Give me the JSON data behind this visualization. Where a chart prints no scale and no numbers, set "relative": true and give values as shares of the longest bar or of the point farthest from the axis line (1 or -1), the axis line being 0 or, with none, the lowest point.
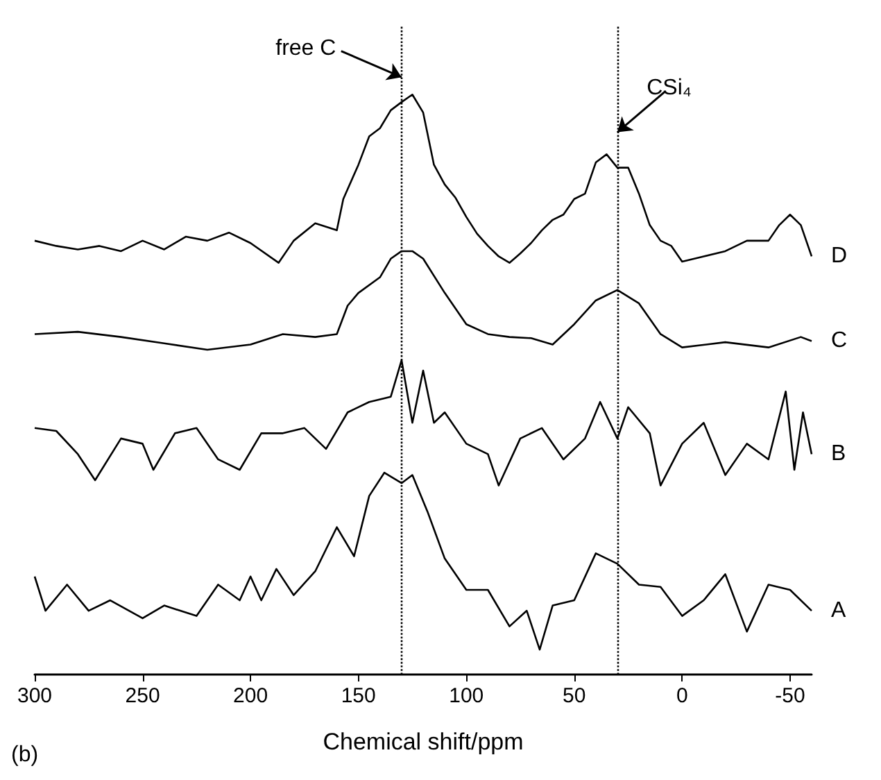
{
  "chart_data": {
    "type": "line",
    "relative": true,
    "xlabel": "Chemical shift/ppm",
    "xlim": [
      300,
      -60
    ],
    "xticks": [
      300,
      250,
      200,
      150,
      100,
      50,
      0,
      -50
    ],
    "series": [
      {
        "name": "D",
        "color": "#000000",
        "x": [
          300,
          290,
          280,
          270,
          260,
          250,
          240,
          230,
          220,
          210,
          200,
          187,
          180,
          170,
          160,
          157,
          150,
          145,
          140,
          135,
          130,
          125,
          120,
          115,
          110,
          105,
          100,
          95,
          90,
          85,
          80,
          75,
          70,
          65,
          60,
          55,
          50,
          45,
          40,
          35,
          30,
          25,
          20,
          15,
          10,
          5,
          0,
          -10,
          -20,
          -30,
          -40,
          -45,
          -50,
          -55,
          -60
        ],
        "values": [
          0.748,
          0.739,
          0.733,
          0.739,
          0.73,
          0.748,
          0.733,
          0.755,
          0.748,
          0.762,
          0.744,
          0.71,
          0.748,
          0.778,
          0.766,
          0.82,
          0.879,
          0.928,
          0.942,
          0.973,
          0.987,
          1.0,
          0.969,
          0.879,
          0.845,
          0.822,
          0.789,
          0.76,
          0.739,
          0.721,
          0.71,
          0.726,
          0.744,
          0.766,
          0.784,
          0.793,
          0.82,
          0.829,
          0.883,
          0.897,
          0.874,
          0.874,
          0.829,
          0.775,
          0.748,
          0.739,
          0.712,
          0.721,
          0.73,
          0.748,
          0.748,
          0.775,
          0.793,
          0.775,
          0.721
        ]
      },
      {
        "name": "C",
        "color": "#000000",
        "x": [
          300,
          280,
          260,
          240,
          220,
          200,
          185,
          170,
          160,
          155,
          150,
          140,
          135,
          130,
          125,
          120,
          110,
          100,
          90,
          80,
          70,
          60,
          50,
          40,
          30,
          20,
          10,
          0,
          -20,
          -40,
          -55,
          -60
        ],
        "values": [
          0.587,
          0.591,
          0.582,
          0.571,
          0.56,
          0.569,
          0.587,
          0.582,
          0.587,
          0.636,
          0.658,
          0.685,
          0.717,
          0.73,
          0.73,
          0.717,
          0.658,
          0.604,
          0.587,
          0.582,
          0.58,
          0.569,
          0.604,
          0.645,
          0.663,
          0.64,
          0.587,
          0.564,
          0.573,
          0.564,
          0.582,
          0.575
        ]
      },
      {
        "name": "B",
        "color": "#000000",
        "x": [
          300,
          290,
          280,
          272,
          260,
          250,
          245,
          235,
          225,
          215,
          205,
          195,
          185,
          175,
          165,
          155,
          145,
          135,
          130,
          125,
          120,
          115,
          110,
          100,
          90,
          85,
          75,
          65,
          55,
          45,
          38,
          30,
          25,
          15,
          10,
          0,
          -10,
          -20,
          -30,
          -40,
          -48,
          -52,
          -56,
          -60
        ],
        "values": [
          0.425,
          0.42,
          0.38,
          0.335,
          0.407,
          0.398,
          0.353,
          0.416,
          0.425,
          0.371,
          0.353,
          0.416,
          0.416,
          0.425,
          0.389,
          0.452,
          0.47,
          0.479,
          0.542,
          0.434,
          0.524,
          0.434,
          0.452,
          0.398,
          0.38,
          0.326,
          0.407,
          0.425,
          0.371,
          0.407,
          0.47,
          0.407,
          0.461,
          0.416,
          0.326,
          0.398,
          0.434,
          0.344,
          0.398,
          0.371,
          0.488,
          0.353,
          0.452,
          0.38
        ]
      },
      {
        "name": "A",
        "color": "#000000",
        "x": [
          300,
          295,
          285,
          275,
          265,
          250,
          240,
          225,
          215,
          205,
          200,
          195,
          188,
          180,
          170,
          160,
          152,
          145,
          138,
          130,
          125,
          118,
          110,
          100,
          90,
          80,
          72,
          66,
          60,
          50,
          40,
          30,
          20,
          10,
          0,
          -10,
          -20,
          -30,
          -40,
          -50,
          -60
        ],
        "values": [
          0.169,
          0.11,
          0.155,
          0.11,
          0.128,
          0.097,
          0.119,
          0.101,
          0.155,
          0.128,
          0.169,
          0.128,
          0.182,
          0.137,
          0.178,
          0.254,
          0.204,
          0.308,
          0.348,
          0.33,
          0.344,
          0.281,
          0.2,
          0.146,
          0.146,
          0.083,
          0.11,
          0.043,
          0.119,
          0.128,
          0.209,
          0.191,
          0.155,
          0.151,
          0.101,
          0.128,
          0.173,
          0.074,
          0.155,
          0.146,
          0.11
        ]
      }
    ],
    "ref_lines": [
      {
        "axis": "x",
        "value": 130,
        "color": "#000000",
        "line_style": "dotted"
      },
      {
        "axis": "x",
        "value": 30,
        "color": "#000000",
        "line_style": "dotted"
      }
    ],
    "annotations": [
      {
        "text": "free C",
        "x": 130,
        "y": 1.03
      },
      {
        "text": "CSi₄",
        "x": 30,
        "y": 0.935
      },
      "(b)"
    ]
  }
}
